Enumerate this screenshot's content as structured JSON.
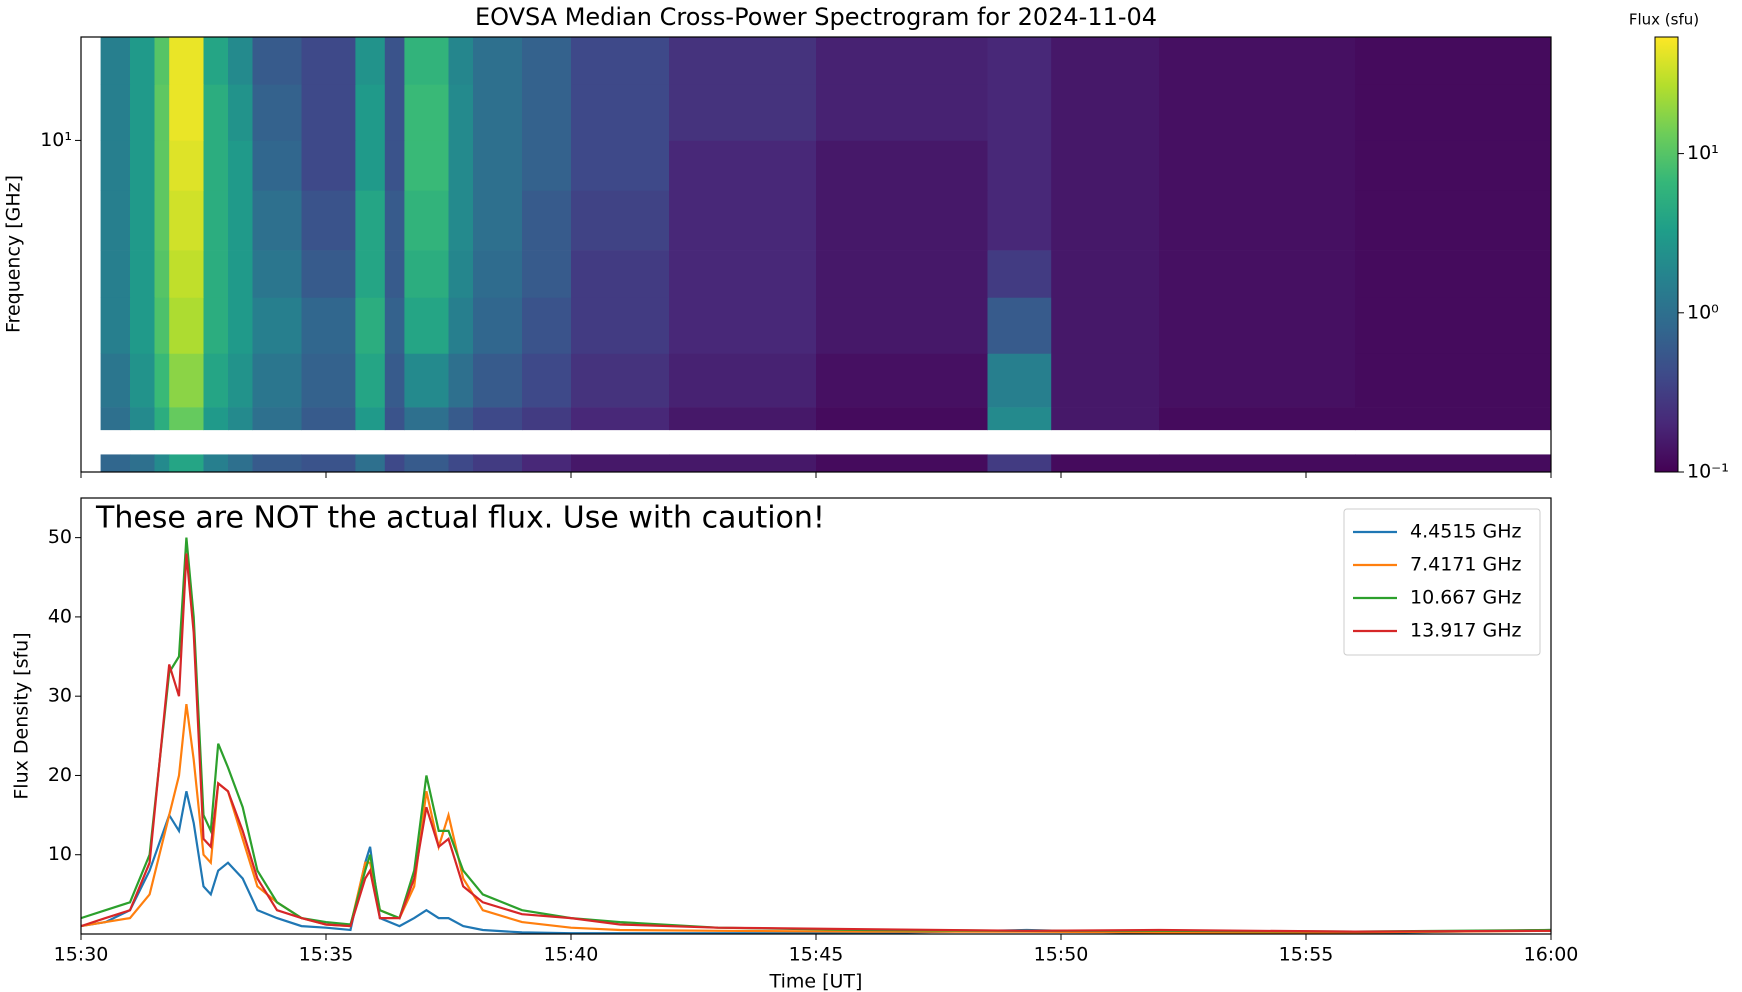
{
  "chart_data": [
    {
      "type": "heatmap",
      "title": "EOVSA Median Cross-Power Spectrogram for 2024-11-04",
      "ylabel": "Frequency [GHz]",
      "colorbar_label": "Flux (sfu)",
      "colormap": "viridis",
      "log_color": true,
      "log_y": true,
      "xlim": [
        "15:30",
        "16:00"
      ],
      "ylim": [
        3.4,
        14
      ],
      "yticks": [
        {
          "value": 10,
          "label": "10¹"
        }
      ],
      "zlim": [
        0.1,
        54
      ],
      "zticks": [
        {
          "value": 0.1,
          "label": "10⁻¹"
        },
        {
          "value": 1,
          "label": "10⁰"
        },
        {
          "value": 10,
          "label": "10¹"
        }
      ],
      "x_edges": [
        "15:30:24",
        "15:31:00",
        "15:31:30",
        "15:31:48",
        "15:32:30",
        "15:33:00",
        "15:33:30",
        "15:34:30",
        "15:35:36",
        "15:36:12",
        "15:36:36",
        "15:37:30",
        "15:38:00",
        "15:39:00",
        "15:40:00",
        "15:42:00",
        "15:45:00",
        "15:48:30",
        "15:49:48",
        "15:52:00",
        "15:56:00",
        "16:00:00"
      ],
      "y_edges": [
        3.4,
        3.6,
        3.9,
        4.2,
        5,
        6,
        7,
        8.5,
        10,
        12,
        14
      ],
      "z": [
        [
          0.8,
          1,
          2,
          4,
          1.5,
          1,
          0.6,
          0.5,
          1,
          0.4,
          0.6,
          0.4,
          0.3,
          0.2,
          0.15,
          0.15,
          0.12,
          0.3,
          0.12,
          0.12,
          0.12
        ],
        [
          null,
          null,
          null,
          null,
          null,
          null,
          null,
          null,
          null,
          null,
          null,
          null,
          null,
          null,
          null,
          null,
          null,
          null,
          null,
          null,
          null
        ],
        [
          1,
          2,
          5,
          12,
          3,
          2,
          1,
          0.6,
          3,
          0.5,
          1,
          0.6,
          0.4,
          0.3,
          0.2,
          0.15,
          0.12,
          2,
          0.15,
          0.12,
          0.12
        ],
        [
          1.2,
          2.5,
          7,
          18,
          4,
          2.5,
          1.2,
          0.7,
          4,
          0.6,
          2,
          1,
          0.6,
          0.4,
          0.25,
          0.18,
          0.13,
          1.5,
          0.15,
          0.13,
          0.12
        ],
        [
          1.5,
          3,
          9,
          25,
          5,
          3,
          1.5,
          0.8,
          5,
          0.7,
          4,
          1.5,
          0.8,
          0.5,
          0.3,
          0.2,
          0.15,
          0.6,
          0.15,
          0.13,
          0.12
        ],
        [
          1.5,
          3,
          10,
          30,
          5,
          3,
          1.2,
          0.6,
          4,
          0.6,
          5,
          1.8,
          0.9,
          0.6,
          0.3,
          0.2,
          0.15,
          0.3,
          0.15,
          0.13,
          0.12
        ],
        [
          1.5,
          3,
          11,
          35,
          5,
          3,
          1,
          0.5,
          4,
          0.6,
          6,
          2,
          1,
          0.6,
          0.35,
          0.2,
          0.15,
          0.2,
          0.15,
          0.13,
          0.12
        ],
        [
          1.5,
          3,
          11,
          40,
          5,
          3,
          0.8,
          0.4,
          3,
          0.5,
          7,
          2,
          1,
          0.7,
          0.4,
          0.2,
          0.15,
          0.2,
          0.15,
          0.13,
          0.12
        ],
        [
          1.5,
          3,
          11,
          45,
          5,
          2.5,
          0.7,
          0.4,
          3,
          0.5,
          7,
          2,
          1,
          0.7,
          0.4,
          0.25,
          0.18,
          0.2,
          0.15,
          0.13,
          0.12
        ],
        [
          1.5,
          3,
          10,
          45,
          4,
          2,
          0.6,
          0.4,
          2.5,
          0.5,
          6,
          1.8,
          1,
          0.7,
          0.4,
          0.25,
          0.18,
          0.2,
          0.15,
          0.13,
          0.12
        ]
      ]
    },
    {
      "type": "line",
      "annotation": "These are NOT the actual flux. Use with caution!",
      "xlabel": "Time [UT]",
      "ylabel": "Flux Density [sfu]",
      "legend": "upper right",
      "xlim": [
        "15:30",
        "16:00"
      ],
      "xticks": [
        "15:30",
        "15:35",
        "15:40",
        "15:45",
        "15:50",
        "15:55",
        "16:00"
      ],
      "ylim": [
        0,
        55
      ],
      "yticks": [
        10,
        20,
        30,
        40,
        50
      ],
      "x": [
        "15:30:00",
        "15:30:30",
        "15:31:00",
        "15:31:24",
        "15:31:48",
        "15:32:00",
        "15:32:09",
        "15:32:18",
        "15:32:30",
        "15:32:39",
        "15:32:48",
        "15:33:00",
        "15:33:18",
        "15:33:36",
        "15:34:00",
        "15:34:30",
        "15:35:00",
        "15:35:30",
        "15:35:48",
        "15:35:54",
        "15:36:06",
        "15:36:30",
        "15:36:48",
        "15:37:03",
        "15:37:18",
        "15:37:30",
        "15:37:48",
        "15:38:12",
        "15:39:00",
        "15:40:00",
        "15:41:00",
        "15:43:00",
        "15:46:00",
        "15:49:18",
        "15:52:00",
        "15:56:00",
        "16:00:00"
      ],
      "series": [
        {
          "name": "4.4515 GHz",
          "color": "#1f77b4",
          "values": [
            1,
            1.5,
            3,
            8,
            15,
            13,
            18,
            14,
            6,
            5,
            8,
            9,
            7,
            3,
            2,
            1,
            0.8,
            0.5,
            9,
            11,
            2,
            1,
            2,
            3,
            2,
            2,
            1,
            0.5,
            0.2,
            0.1,
            0.1,
            0.1,
            0.1,
            0.5,
            0.1,
            0.1,
            0.5
          ]
        },
        {
          "name": "7.4171 GHz",
          "color": "#ff7f0e",
          "values": [
            1,
            1.5,
            2,
            5,
            15,
            20,
            29,
            22,
            10,
            9,
            19,
            18,
            12,
            6,
            4,
            2,
            1.2,
            1,
            9,
            9,
            3,
            2,
            6,
            18,
            11,
            15,
            7,
            3,
            1.5,
            0.8,
            0.5,
            0.4,
            0.3,
            0.3,
            0.2,
            0.2,
            0.4
          ]
        },
        {
          "name": "10.667 GHz",
          "color": "#2ca02c",
          "values": [
            2,
            3,
            4,
            10,
            33,
            35,
            50,
            40,
            15,
            13,
            24,
            21,
            16,
            8,
            4,
            2,
            1.5,
            1.2,
            8,
            10,
            3,
            2,
            8,
            20,
            13,
            13,
            8,
            5,
            3,
            2,
            1.5,
            0.8,
            0.5,
            0.4,
            0.4,
            0.3,
            0.5
          ]
        },
        {
          "name": "13.917 GHz",
          "color": "#d62728",
          "values": [
            1,
            2,
            3,
            9,
            34,
            30,
            48,
            38,
            12,
            11,
            19,
            18,
            13,
            7,
            3,
            2,
            1.2,
            1,
            7,
            8,
            2,
            2,
            7,
            16,
            11,
            12,
            6,
            4,
            2.5,
            2,
            1.2,
            0.8,
            0.6,
            0.4,
            0.5,
            0.3,
            0.4
          ]
        }
      ]
    }
  ]
}
